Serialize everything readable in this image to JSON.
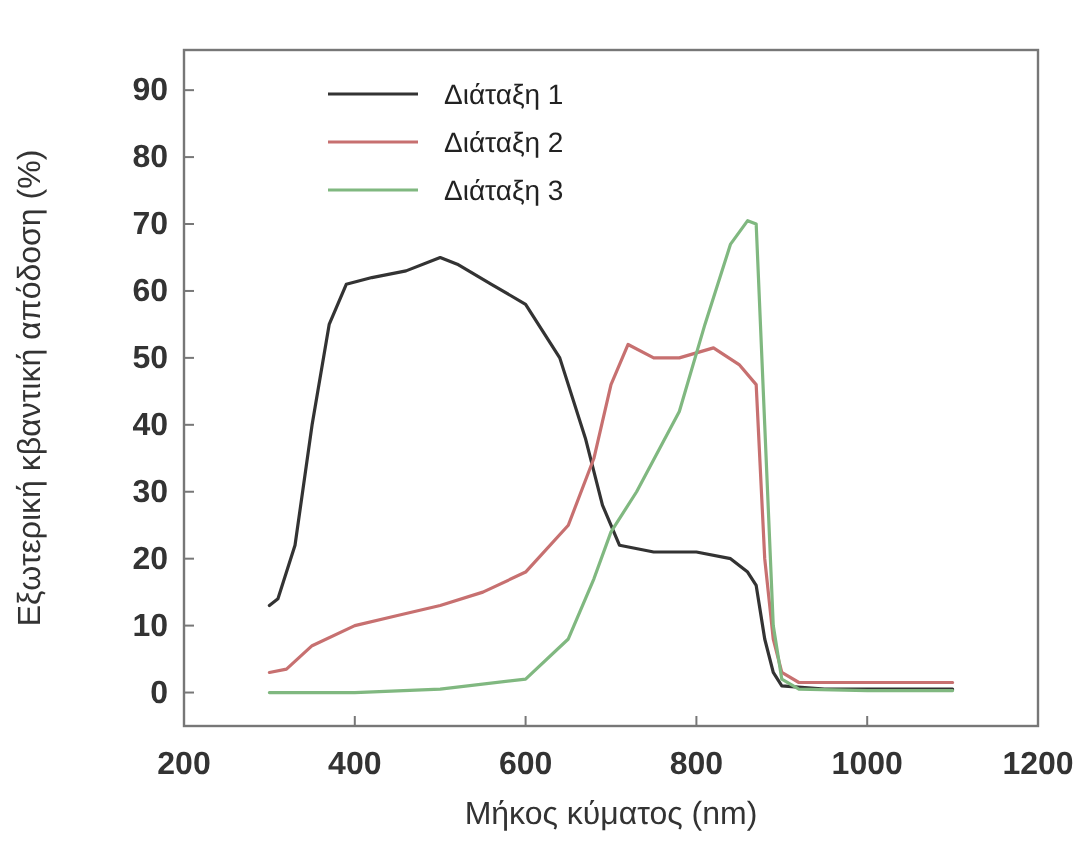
{
  "chart_data": {
    "type": "line",
    "xlabel": "Μήκος κύματος (nm)",
    "ylabel": "Εξωτερική κβαντική απόδοση (%)",
    "xlim": [
      200,
      1200
    ],
    "ylim": [
      -5,
      96
    ],
    "xticks": [
      200,
      400,
      600,
      800,
      1000,
      1200
    ],
    "yticks": [
      0,
      10,
      20,
      30,
      40,
      50,
      60,
      70,
      80,
      90
    ],
    "legend": "top left",
    "grid": false,
    "series": [
      {
        "name": "Διάταξη 1",
        "color": "#333333",
        "x": [
          300,
          310,
          330,
          350,
          370,
          390,
          420,
          460,
          500,
          520,
          560,
          600,
          640,
          670,
          690,
          710,
          750,
          800,
          840,
          860,
          870,
          880,
          890,
          900,
          950,
          1000,
          1100
        ],
        "values": [
          13,
          14,
          22,
          40,
          55,
          61,
          62,
          63,
          65,
          64,
          61,
          58,
          50,
          38,
          28,
          22,
          21,
          21,
          20,
          18,
          16,
          8,
          3,
          1,
          0.5,
          0.5,
          0.5
        ]
      },
      {
        "name": "Διάταξη 2",
        "color": "#c77070",
        "x": [
          300,
          320,
          350,
          400,
          450,
          500,
          550,
          600,
          650,
          680,
          700,
          720,
          750,
          780,
          820,
          850,
          870,
          880,
          890,
          900,
          920,
          1000,
          1100
        ],
        "values": [
          3,
          3.5,
          7,
          10,
          11.5,
          13,
          15,
          18,
          25,
          35,
          46,
          52,
          50,
          50,
          51.5,
          49,
          46,
          20,
          8,
          3,
          1.5,
          1.5,
          1.5
        ]
      },
      {
        "name": "Διάταξη 3",
        "color": "#80b880",
        "x": [
          300,
          400,
          500,
          600,
          650,
          680,
          700,
          730,
          780,
          810,
          840,
          860,
          870,
          880,
          890,
          900,
          920,
          1000,
          1100
        ],
        "values": [
          0,
          0,
          0.5,
          2,
          8,
          17,
          24,
          30,
          42,
          55,
          67,
          70.5,
          70,
          40,
          10,
          2,
          0.5,
          0.3,
          0.3
        ]
      }
    ]
  }
}
